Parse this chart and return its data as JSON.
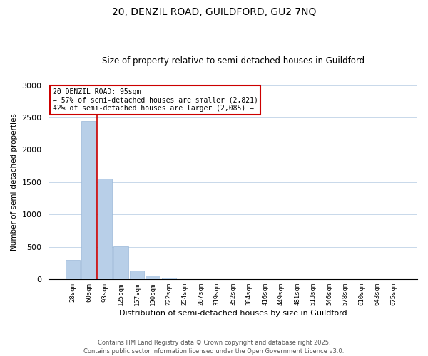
{
  "title1": "20, DENZIL ROAD, GUILDFORD, GU2 7NQ",
  "title2": "Size of property relative to semi-detached houses in Guildford",
  "bar_labels": [
    "28sqm",
    "60sqm",
    "93sqm",
    "125sqm",
    "157sqm",
    "190sqm",
    "222sqm",
    "254sqm",
    "287sqm",
    "319sqm",
    "352sqm",
    "384sqm",
    "416sqm",
    "449sqm",
    "481sqm",
    "513sqm",
    "546sqm",
    "578sqm",
    "610sqm",
    "643sqm",
    "675sqm"
  ],
  "bar_values": [
    300,
    2450,
    1550,
    510,
    140,
    55,
    25,
    0,
    0,
    0,
    0,
    0,
    0,
    0,
    0,
    0,
    0,
    0,
    0,
    0,
    0
  ],
  "bar_color": "#b8cfe8",
  "bar_edge_color": "#9ab8d8",
  "vline_position": 1.5,
  "vline_color": "#cc0000",
  "ylabel": "Number of semi-detached properties",
  "xlabel": "Distribution of semi-detached houses by size in Guildford",
  "ylim": [
    0,
    3000
  ],
  "yticks": [
    0,
    500,
    1000,
    1500,
    2000,
    2500,
    3000
  ],
  "annotation_title": "20 DENZIL ROAD: 95sqm",
  "annotation_line1": "← 57% of semi-detached houses are smaller (2,821)",
  "annotation_line2": "42% of semi-detached houses are larger (2,085) →",
  "annotation_box_color": "#ffffff",
  "annotation_border_color": "#cc0000",
  "footer1": "Contains HM Land Registry data © Crown copyright and database right 2025.",
  "footer2": "Contains public sector information licensed under the Open Government Licence v3.0.",
  "background_color": "#ffffff",
  "grid_color": "#c8d8ea"
}
